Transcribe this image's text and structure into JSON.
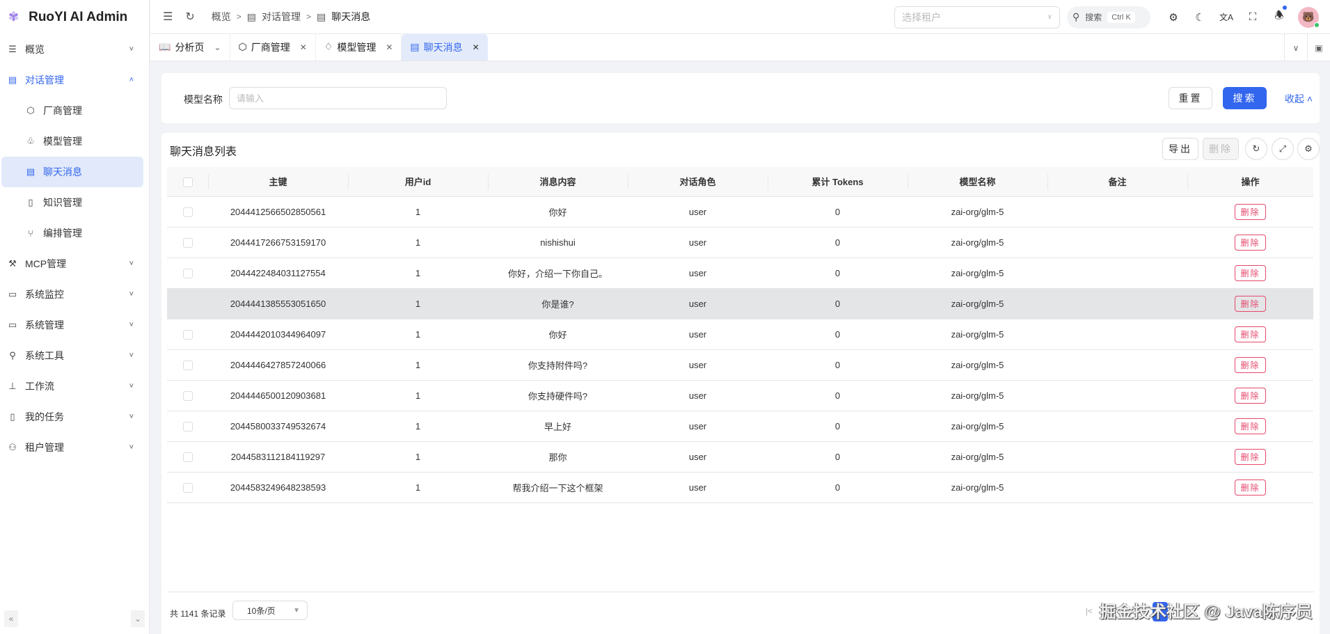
{
  "app": {
    "title": "RuoYI AI Admin",
    "accent": "#3366ee",
    "danger": "#e5486b"
  },
  "sidebar": {
    "items": [
      {
        "label": "概览",
        "icon": "menu-lines-icon",
        "expandable": true
      },
      {
        "label": "对话管理",
        "icon": "chat-icon",
        "expandable": true,
        "open": true,
        "children": [
          {
            "label": "厂商管理",
            "icon": "package-icon"
          },
          {
            "label": "模型管理",
            "icon": "cubes-icon"
          },
          {
            "label": "聊天消息",
            "icon": "message-icon",
            "active": true
          },
          {
            "label": "知识管理",
            "icon": "book-icon"
          },
          {
            "label": "编排管理",
            "icon": "flow-icon"
          }
        ]
      },
      {
        "label": "MCP管理",
        "icon": "robot-arm-icon",
        "expandable": true
      },
      {
        "label": "系统监控",
        "icon": "monitor-icon",
        "expandable": true
      },
      {
        "label": "系统管理",
        "icon": "desktop-icon",
        "expandable": true
      },
      {
        "label": "系统工具",
        "icon": "wrench-icon",
        "expandable": true
      },
      {
        "label": "工作流",
        "icon": "sitemap-icon",
        "expandable": true
      },
      {
        "label": "我的任务",
        "icon": "task-icon",
        "expandable": true
      },
      {
        "label": "租户管理",
        "icon": "users-icon",
        "expandable": true
      }
    ]
  },
  "header": {
    "breadcrumb": [
      "概览",
      "对话管理",
      "聊天消息"
    ],
    "tenant_placeholder": "选择租户",
    "search_label": "搜索",
    "search_shortcut": "Ctrl K",
    "notification_dot": true
  },
  "tabs": [
    {
      "label": "分析页",
      "pinned": true
    },
    {
      "label": "厂商管理"
    },
    {
      "label": "模型管理"
    },
    {
      "label": "聊天消息",
      "active": true
    }
  ],
  "search": {
    "field_label": "模型名称",
    "placeholder": "请输入",
    "value": "",
    "reset": "重置",
    "submit": "搜索",
    "collapse": "收起"
  },
  "table": {
    "title": "聊天消息列表",
    "export": "导出",
    "delete": "删除",
    "columns": [
      "主键",
      "用户id",
      "消息内容",
      "对话角色",
      "累计 Tokens",
      "模型名称",
      "备注",
      "操作"
    ],
    "row_action": "删除",
    "rows": [
      [
        "2044412566502850561",
        "1",
        "你好",
        "user",
        "0",
        "zai-org/glm-5",
        ""
      ],
      [
        "2044417266753159170",
        "1",
        "nishishui",
        "user",
        "0",
        "zai-org/glm-5",
        ""
      ],
      [
        "2044422484031127554",
        "1",
        "你好，介绍一下你自己。",
        "user",
        "0",
        "zai-org/glm-5",
        ""
      ],
      [
        "2044441385553051650",
        "1",
        "你是谁?",
        "user",
        "0",
        "zai-org/glm-5",
        ""
      ],
      [
        "2044442010344964097",
        "1",
        "你好",
        "user",
        "0",
        "zai-org/glm-5",
        ""
      ],
      [
        "2044446427857240066",
        "1",
        "你支持附件吗?",
        "user",
        "0",
        "zai-org/glm-5",
        ""
      ],
      [
        "2044446500120903681",
        "1",
        "你支持硬件吗?",
        "user",
        "0",
        "zai-org/glm-5",
        ""
      ],
      [
        "2044580033749532674",
        "1",
        "早上好",
        "user",
        "0",
        "zai-org/glm-5",
        ""
      ],
      [
        "2044583112184119297",
        "1",
        "那你",
        "user",
        "0",
        "zai-org/glm-5",
        ""
      ],
      [
        "2044583249648238593",
        "1",
        "帮我介绍一下这个框架",
        "user",
        "0",
        "zai-org/glm-5",
        ""
      ]
    ]
  },
  "pagination": {
    "total_text": "共 1141 条记录",
    "page_size": "10条/页",
    "current_page": "1"
  },
  "watermark": "掘金技术社区 @ Java陈序员"
}
